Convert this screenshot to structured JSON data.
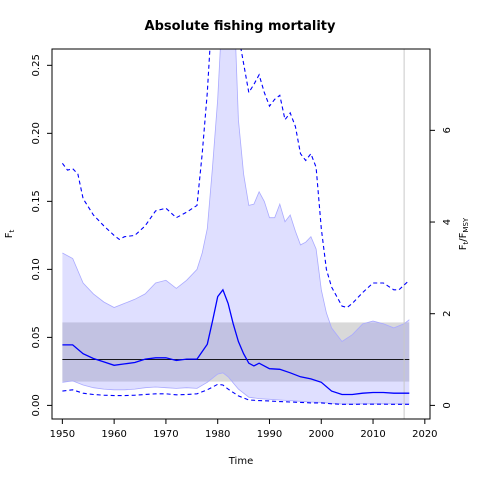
{
  "chart_data": {
    "type": "line",
    "title": "Absolute fishing mortality",
    "xlabel": "Time",
    "ylabel_base": "F",
    "ylabel_sub": "t",
    "y2label_num_base": "F",
    "y2label_num_sub": "t",
    "y2label_den_base": "F",
    "y2label_den_sub": "MSY",
    "xlim": [
      1948,
      2021
    ],
    "ylim": [
      -0.01,
      0.262
    ],
    "x_ticks": [
      1950,
      1960,
      1970,
      1980,
      1990,
      2000,
      2010,
      2020
    ],
    "y_ticks": [
      "0.00",
      "0.05",
      "0.10",
      "0.15",
      "0.20",
      "0.25"
    ],
    "y2_ticks": [
      "0",
      "2",
      "4",
      "6"
    ],
    "y2_tick_values": [
      0,
      0.0674,
      0.1348,
      0.2022
    ],
    "grid": false,
    "last_data_year": 2016,
    "reference": {
      "fmsy": 0.0337,
      "fmsy_lower": 0.0175,
      "fmsy_upper": 0.061,
      "x_start": 1950,
      "x_end": 2017
    },
    "series": [
      {
        "role": "estimate",
        "color": "#0000ff",
        "x": [
          1950,
          1952,
          1954,
          1956,
          1958,
          1960,
          1962,
          1964,
          1966,
          1968,
          1970,
          1972,
          1974,
          1976,
          1978,
          1979,
          1980,
          1981,
          1982,
          1983,
          1984,
          1985,
          1986,
          1987,
          1988,
          1990,
          1992,
          1994,
          1996,
          1998,
          2000,
          2002,
          2004,
          2006,
          2008,
          2010,
          2012,
          2014,
          2016,
          2017
        ],
        "y": [
          0.0445,
          0.0445,
          0.038,
          0.0345,
          0.032,
          0.0295,
          0.0305,
          0.0315,
          0.034,
          0.035,
          0.035,
          0.033,
          0.034,
          0.034,
          0.045,
          0.062,
          0.08,
          0.085,
          0.075,
          0.06,
          0.047,
          0.038,
          0.031,
          0.029,
          0.031,
          0.027,
          0.0265,
          0.024,
          0.021,
          0.0195,
          0.017,
          0.0105,
          0.008,
          0.008,
          0.009,
          0.0095,
          0.0095,
          0.009,
          0.009,
          0.009
        ]
      },
      {
        "role": "ci-upper",
        "color": "#0000ff",
        "x": [
          1950,
          1951,
          1952,
          1953,
          1954,
          1956,
          1958,
          1960,
          1961,
          1962,
          1964,
          1966,
          1968,
          1970,
          1972,
          1974,
          1976,
          1977,
          1978,
          1978.5,
          1984.5,
          1986,
          1987,
          1988,
          1989,
          1990,
          1991,
          1992,
          1993,
          1994,
          1995,
          1996,
          1997,
          1998,
          1999,
          2000,
          2001,
          2002,
          2004,
          2005,
          2006,
          2008,
          2010,
          2012,
          2014,
          2015,
          2017
        ],
        "y": [
          0.178,
          0.173,
          0.174,
          0.17,
          0.152,
          0.14,
          0.132,
          0.125,
          0.122,
          0.124,
          0.125,
          0.132,
          0.143,
          0.145,
          0.138,
          0.142,
          0.147,
          0.185,
          0.23,
          0.262,
          0.262,
          0.23,
          0.236,
          0.243,
          0.23,
          0.22,
          0.225,
          0.228,
          0.21,
          0.215,
          0.205,
          0.185,
          0.18,
          0.185,
          0.175,
          0.13,
          0.1,
          0.087,
          0.073,
          0.072,
          0.075,
          0.083,
          0.09,
          0.09,
          0.085,
          0.085,
          0.092
        ]
      },
      {
        "role": "ci-lower",
        "color": "#0000ff",
        "x": [
          1950,
          1952,
          1954,
          1956,
          1958,
          1960,
          1962,
          1964,
          1966,
          1968,
          1970,
          1972,
          1974,
          1976,
          1978,
          1980,
          1981,
          1982,
          1984,
          1986,
          1988,
          1990,
          1992,
          1994,
          1996,
          1998,
          2000,
          2002,
          2004,
          2006,
          2008,
          2010,
          2012,
          2014,
          2016,
          2017
        ],
        "y": [
          0.0105,
          0.0115,
          0.009,
          0.008,
          0.0075,
          0.0072,
          0.0072,
          0.0075,
          0.008,
          0.0085,
          0.0085,
          0.0078,
          0.008,
          0.0085,
          0.0115,
          0.0155,
          0.015,
          0.012,
          0.007,
          0.004,
          0.0035,
          0.0032,
          0.0028,
          0.0025,
          0.0022,
          0.0018,
          0.0018,
          0.0012,
          0.0008,
          0.0008,
          0.0009,
          0.0009,
          0.0009,
          0.0008,
          0.0008,
          0.0008
        ]
      },
      {
        "role": "band-upper",
        "color": "#aaaaff",
        "x": [
          1950,
          1952,
          1954,
          1956,
          1958,
          1960,
          1962,
          1964,
          1966,
          1968,
          1970,
          1972,
          1974,
          1976,
          1977,
          1978,
          1979,
          1980,
          1980.5,
          1983.5,
          1984,
          1985,
          1986,
          1987,
          1988,
          1989,
          1990,
          1991,
          1992,
          1993,
          1994,
          1995,
          1996,
          1997,
          1998,
          1999,
          2000,
          2001,
          2002,
          2004,
          2006,
          2008,
          2010,
          2012,
          2014,
          2016,
          2017
        ],
        "y": [
          0.112,
          0.108,
          0.09,
          0.082,
          0.076,
          0.072,
          0.075,
          0.078,
          0.082,
          0.09,
          0.092,
          0.086,
          0.092,
          0.1,
          0.112,
          0.13,
          0.175,
          0.225,
          0.262,
          0.262,
          0.21,
          0.17,
          0.147,
          0.148,
          0.157,
          0.15,
          0.138,
          0.138,
          0.148,
          0.135,
          0.14,
          0.128,
          0.118,
          0.12,
          0.124,
          0.115,
          0.085,
          0.068,
          0.057,
          0.047,
          0.052,
          0.06,
          0.062,
          0.06,
          0.057,
          0.06,
          0.063
        ]
      },
      {
        "role": "band-lower",
        "color": "#aaaaff",
        "x": [
          1950,
          1952,
          1954,
          1956,
          1958,
          1960,
          1962,
          1964,
          1966,
          1968,
          1970,
          1972,
          1974,
          1976,
          1978,
          1980,
          1981,
          1982,
          1984,
          1986,
          1988,
          1990,
          1992,
          1994,
          1996,
          1998,
          2000,
          2002,
          2004,
          2006,
          2008,
          2010,
          2012,
          2014,
          2016,
          2017
        ],
        "y": [
          0.017,
          0.018,
          0.015,
          0.013,
          0.012,
          0.0115,
          0.0115,
          0.012,
          0.013,
          0.0135,
          0.013,
          0.0125,
          0.013,
          0.0125,
          0.017,
          0.023,
          0.024,
          0.021,
          0.012,
          0.006,
          0.005,
          0.0045,
          0.004,
          0.0035,
          0.003,
          0.0025,
          0.0022,
          0.0015,
          0.001,
          0.001,
          0.0012,
          0.0012,
          0.0012,
          0.0011,
          0.0011,
          0.0011
        ]
      }
    ]
  }
}
